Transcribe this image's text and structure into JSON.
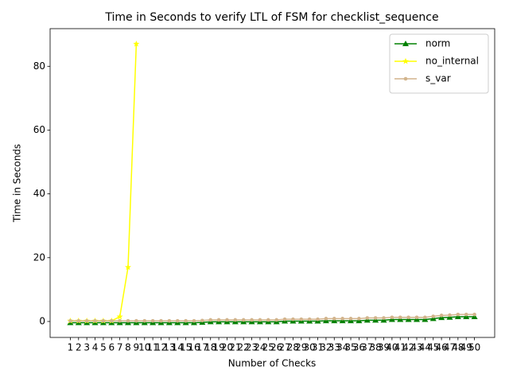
{
  "chart_data": {
    "type": "line",
    "title": "Time in Seconds to verify LTL of FSM for checklist_sequence",
    "xlabel": "Number of Checks",
    "ylabel": "Time in Seconds",
    "x": [
      1,
      2,
      3,
      4,
      5,
      6,
      7,
      8,
      9,
      10,
      11,
      12,
      13,
      14,
      15,
      16,
      17,
      18,
      19,
      20,
      21,
      22,
      23,
      24,
      25,
      26,
      27,
      28,
      29,
      30,
      31,
      32,
      33,
      34,
      35,
      36,
      37,
      38,
      39,
      40,
      41,
      42,
      43,
      44,
      45,
      46,
      47,
      48,
      49,
      50
    ],
    "xticks": [
      1,
      2,
      3,
      4,
      5,
      6,
      7,
      8,
      9,
      10,
      11,
      12,
      13,
      14,
      15,
      16,
      17,
      18,
      19,
      20,
      21,
      22,
      23,
      24,
      25,
      26,
      27,
      28,
      29,
      30,
      31,
      32,
      33,
      34,
      35,
      36,
      37,
      38,
      39,
      40,
      41,
      42,
      43,
      44,
      45,
      46,
      47,
      48,
      49,
      50
    ],
    "xlim": [
      -1.45,
      52.45
    ],
    "ylim": [
      -5,
      91.8
    ],
    "yticks": [
      0,
      20,
      40,
      60,
      80
    ],
    "legend": "upper right",
    "grid": false,
    "series": [
      {
        "name": "norm",
        "color": "#008000",
        "marker": "triangle",
        "values": [
          -0.4,
          -0.4,
          -0.4,
          -0.4,
          -0.4,
          -0.4,
          -0.4,
          -0.4,
          -0.4,
          -0.4,
          -0.4,
          -0.4,
          -0.4,
          -0.4,
          -0.4,
          -0.4,
          -0.3,
          -0.1,
          -0.1,
          -0.1,
          -0.1,
          -0.1,
          -0.1,
          -0.1,
          -0.1,
          -0.1,
          0.1,
          0.1,
          0.1,
          0.1,
          0.1,
          0.2,
          0.2,
          0.2,
          0.2,
          0.2,
          0.4,
          0.4,
          0.4,
          0.6,
          0.6,
          0.6,
          0.6,
          0.6,
          0.9,
          1.2,
          1.3,
          1.5,
          1.5,
          1.5
        ]
      },
      {
        "name": "no_internal",
        "color": "#ffff00",
        "marker": "star",
        "values": [
          0.2,
          0.2,
          0.2,
          0.2,
          0.2,
          0.2,
          1.5,
          17,
          87,
          null,
          null,
          null,
          null,
          null,
          null,
          null,
          null,
          null,
          null,
          null,
          null,
          null,
          null,
          null,
          null,
          null,
          null,
          null,
          null,
          null,
          null,
          null,
          null,
          null,
          null,
          null,
          null,
          null,
          null,
          null,
          null,
          null,
          null,
          null,
          null,
          null,
          null,
          null,
          null,
          null
        ]
      },
      {
        "name": "s_var",
        "color": "#d2b48c",
        "marker": "circle",
        "values": [
          0.2,
          0.2,
          0.2,
          0.2,
          0.2,
          0.2,
          0.2,
          0.2,
          0.2,
          0.2,
          0.2,
          0.2,
          0.2,
          0.2,
          0.2,
          0.2,
          0.3,
          0.5,
          0.5,
          0.5,
          0.5,
          0.5,
          0.5,
          0.5,
          0.5,
          0.5,
          0.7,
          0.7,
          0.7,
          0.7,
          0.7,
          0.9,
          0.9,
          0.9,
          0.9,
          0.9,
          1.1,
          1.1,
          1.1,
          1.3,
          1.3,
          1.3,
          1.3,
          1.3,
          1.6,
          1.9,
          2.0,
          2.2,
          2.2,
          2.2
        ]
      }
    ]
  }
}
